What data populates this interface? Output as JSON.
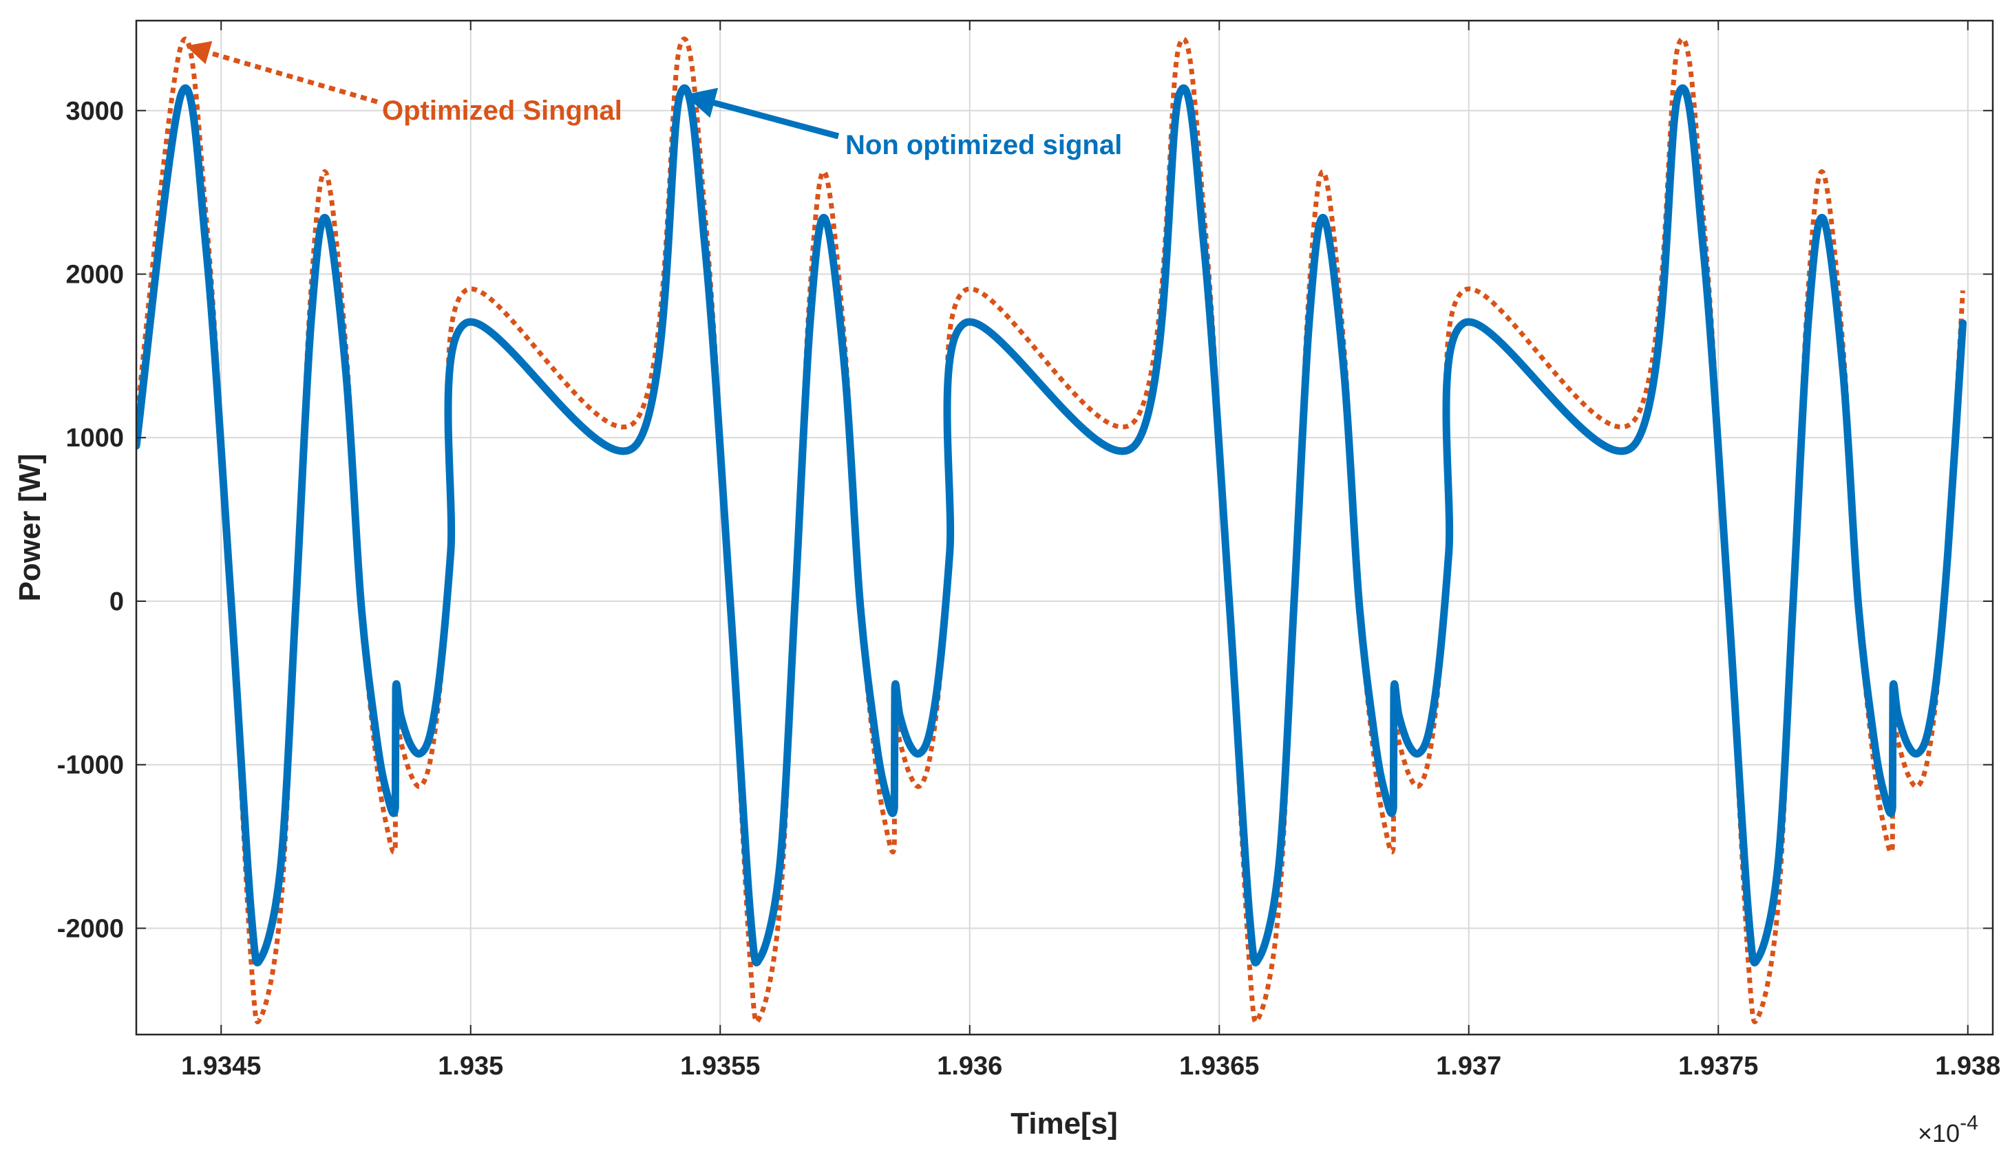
{
  "chart_data": {
    "type": "line",
    "xlabel": "Time[s]",
    "ylabel": "Power [W]",
    "x_exponent": "×10",
    "x_exponent_power": "-4",
    "xlim": [
      1.93433,
      1.93805
    ],
    "ylim": [
      -2650,
      3550
    ],
    "grid": true,
    "x_ticks": [
      1.9345,
      1.935,
      1.9355,
      1.936,
      1.9365,
      1.937,
      1.9375,
      1.938
    ],
    "x_tick_labels": [
      "1.9345",
      "1.935",
      "1.9355",
      "1.936",
      "1.9365",
      "1.937",
      "1.9375",
      "1.938"
    ],
    "y_ticks": [
      -2000,
      -1000,
      0,
      1000,
      2000,
      3000
    ],
    "y_tick_labels": [
      "-2000",
      "-1000",
      "0",
      "1000",
      "2000",
      "3000"
    ],
    "period": 0.001,
    "series": [
      {
        "name": "Non optimized signal",
        "color": "#0072BD",
        "style": "solid",
        "keypoints": [
          [
            1.93433,
            950
          ],
          [
            1.93442,
            3100
          ],
          [
            1.93447,
            2150
          ],
          [
            1.93452,
            0
          ],
          [
            1.93456,
            -1900
          ],
          [
            1.93458,
            -2180
          ],
          [
            1.93462,
            -1600
          ],
          [
            1.93465,
            0
          ],
          [
            1.93468,
            1700
          ],
          [
            1.93471,
            2340
          ],
          [
            1.93475,
            1400
          ],
          [
            1.93478,
            0
          ],
          [
            1.93481,
            -800
          ],
          [
            1.93483,
            -1150
          ],
          [
            1.934849,
            -1260
          ],
          [
            1.93485,
            -530
          ],
          [
            1.93486,
            -700
          ],
          [
            1.93488,
            -880
          ],
          [
            1.9349,
            -930
          ],
          [
            1.93492,
            -800
          ],
          [
            1.93494,
            -400
          ],
          [
            1.93496,
            300
          ],
          [
            1.93499,
            1700
          ]
        ]
      },
      {
        "name": "Optimized Singnal",
        "color": "#D95319",
        "style": "dotted",
        "keypoints": [
          [
            1.93433,
            1100
          ],
          [
            1.93442,
            3400
          ],
          [
            1.93447,
            2350
          ],
          [
            1.93452,
            0
          ],
          [
            1.93456,
            -2200
          ],
          [
            1.93458,
            -2540
          ],
          [
            1.93462,
            -1850
          ],
          [
            1.93465,
            0
          ],
          [
            1.93468,
            1900
          ],
          [
            1.93471,
            2620
          ],
          [
            1.93475,
            1550
          ],
          [
            1.93478,
            0
          ],
          [
            1.93481,
            -950
          ],
          [
            1.93483,
            -1350
          ],
          [
            1.934849,
            -1500
          ],
          [
            1.93485,
            -720
          ],
          [
            1.93486,
            -860
          ],
          [
            1.93488,
            -1060
          ],
          [
            1.9349,
            -1130
          ],
          [
            1.93492,
            -960
          ],
          [
            1.93494,
            -480
          ],
          [
            1.93496,
            330
          ],
          [
            1.93499,
            1900
          ]
        ]
      }
    ],
    "annotations": [
      {
        "text": "Optimized Singnal",
        "target": [
          1.93442,
          3400
        ],
        "series": 1
      },
      {
        "text": "Non optimized signal",
        "target": [
          1.93542,
          3100
        ],
        "series": 0
      }
    ]
  }
}
